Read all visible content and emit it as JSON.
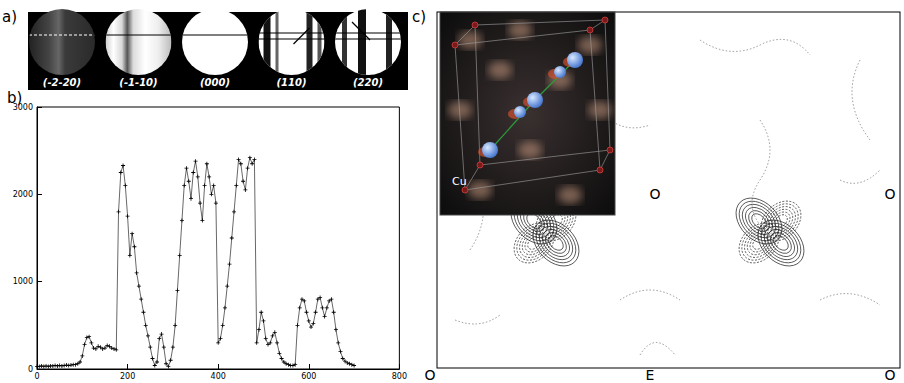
{
  "panels": {
    "a": {
      "label": "a)",
      "discs": [
        "(-2-20)",
        "(-1-10)",
        "(000)",
        "(110)",
        "(220)"
      ]
    },
    "c": {
      "label": "c)",
      "inset_label": "Cu",
      "labels": [
        "O",
        "O",
        "E",
        "O",
        "O"
      ]
    }
  },
  "chart_data": {
    "type": "line",
    "title": "b)",
    "color": "#000000",
    "marker": "plus",
    "grid": false,
    "x": [
      0,
      5,
      10,
      15,
      20,
      25,
      30,
      35,
      40,
      45,
      50,
      55,
      60,
      65,
      70,
      75,
      80,
      85,
      90,
      95,
      100,
      105,
      110,
      115,
      120,
      125,
      130,
      135,
      140,
      145,
      150,
      155,
      160,
      165,
      170,
      175,
      180,
      185,
      190,
      195,
      200,
      205,
      210,
      215,
      220,
      225,
      230,
      235,
      240,
      245,
      250,
      255,
      260,
      265,
      270,
      275,
      280,
      285,
      290,
      295,
      300,
      305,
      310,
      315,
      320,
      325,
      330,
      335,
      340,
      345,
      350,
      355,
      360,
      365,
      370,
      375,
      380,
      385,
      390,
      395,
      400,
      405,
      410,
      415,
      420,
      425,
      430,
      435,
      440,
      445,
      450,
      455,
      460,
      465,
      470,
      475,
      480,
      485,
      490,
      495,
      500,
      505,
      510,
      515,
      520,
      525,
      530,
      535,
      540,
      545,
      550,
      555,
      560,
      565,
      570,
      575,
      580,
      585,
      590,
      595,
      600,
      605,
      610,
      615,
      620,
      625,
      630,
      635,
      640,
      645,
      650,
      655,
      660,
      665,
      670,
      675,
      680,
      685,
      690,
      695,
      700
    ],
    "values": [
      30,
      30,
      35,
      30,
      35,
      30,
      35,
      35,
      40,
      35,
      40,
      35,
      40,
      45,
      40,
      45,
      50,
      50,
      60,
      80,
      150,
      280,
      360,
      370,
      300,
      240,
      230,
      260,
      250,
      230,
      240,
      270,
      260,
      240,
      230,
      220,
      1800,
      2250,
      2330,
      2100,
      1750,
      1300,
      1550,
      1400,
      1100,
      950,
      800,
      650,
      500,
      380,
      250,
      120,
      40,
      80,
      350,
      400,
      250,
      60,
      30,
      100,
      250,
      500,
      900,
      1300,
      1700,
      2100,
      2300,
      2150,
      1950,
      2250,
      2380,
      2200,
      1900,
      1700,
      2100,
      2350,
      2200,
      2000,
      2100,
      1900,
      300,
      350,
      500,
      700,
      950,
      1200,
      1500,
      1800,
      2100,
      2400,
      2350,
      2150,
      2050,
      2300,
      2420,
      2350,
      2400,
      300,
      450,
      650,
      550,
      350,
      280,
      300,
      380,
      420,
      300,
      180,
      120,
      80,
      60,
      50,
      40,
      40,
      50,
      500,
      700,
      800,
      780,
      650,
      550,
      480,
      520,
      650,
      800,
      820,
      700,
      600,
      700,
      780,
      800,
      650,
      450,
      300,
      200,
      120,
      90,
      70,
      60,
      50,
      40
    ],
    "xlim": [
      0,
      800
    ],
    "xticks": [
      0,
      200,
      400,
      600,
      800
    ],
    "ylim": [
      0,
      3000
    ],
    "yticks": [
      0,
      1000,
      2000,
      3000
    ]
  }
}
